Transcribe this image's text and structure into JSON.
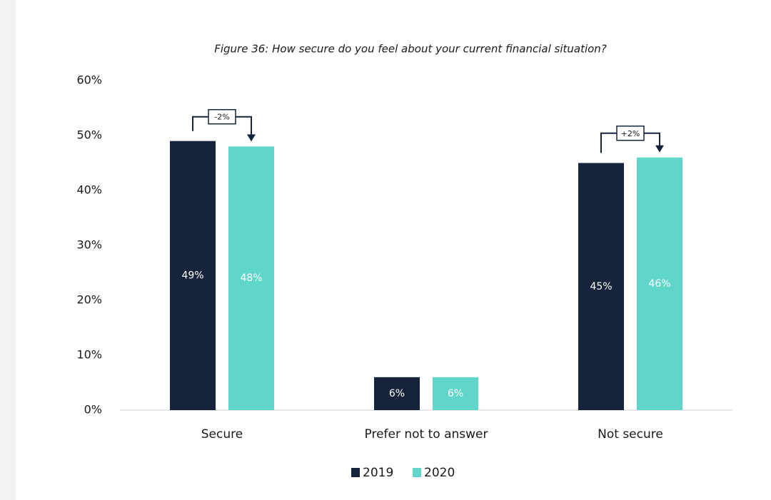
{
  "chart_data": {
    "type": "bar",
    "title": "Figure 36: How secure do you feel about your current financial situation?",
    "categories": [
      "Secure",
      "Prefer not to answer",
      "Not secure"
    ],
    "series": [
      {
        "name": "2019",
        "color": "#15243a",
        "values": [
          49,
          6,
          45
        ],
        "value_labels": [
          "49%",
          "6%",
          "45%"
        ]
      },
      {
        "name": "2020",
        "color": "#5fd6c9",
        "values": [
          48,
          6,
          46
        ],
        "value_labels": [
          "48%",
          "6%",
          "46%"
        ]
      }
    ],
    "ylim": [
      0,
      60
    ],
    "yticks": [
      {
        "value": 0,
        "label": "0%"
      },
      {
        "value": 10,
        "label": "10%"
      },
      {
        "value": 20,
        "label": "20%"
      },
      {
        "value": 30,
        "label": "30%"
      },
      {
        "value": 40,
        "label": "40%"
      },
      {
        "value": 50,
        "label": "50%"
      },
      {
        "value": 60,
        "label": "60%"
      }
    ],
    "annotations": [
      {
        "category": "Secure",
        "text": "-2%"
      },
      {
        "category": "Not secure",
        "text": "+2%"
      }
    ],
    "grid": false
  }
}
